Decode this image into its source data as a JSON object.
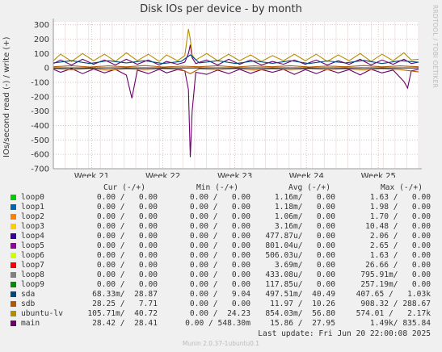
{
  "title": "Disk IOs per device - by month",
  "side_label": "RRDTOOL / TOBI OETIKER",
  "footer": "Munin 2.0.37-1ubuntu0.1",
  "last_update": "Last update: Fri Jun 20 22:00:08 2025",
  "colors": {
    "background": "#f0f0f0",
    "plot_bg": "#ffffff",
    "grid": "#e0c0c0",
    "zero_line": "#000000"
  },
  "legend_headers": {
    "cur": "Cur (-/+)",
    "min": "Min (-/+)",
    "avg": "Avg (-/+)",
    "max": "Max (-/+)"
  },
  "legend": [
    {
      "name": "loop0",
      "color": "#00cc00",
      "cur": "0.00 /   0.00",
      "min": "0.00 /   0.00",
      "avg": "1.16m/   0.00",
      "max": "1.63 /   0.00"
    },
    {
      "name": "loop1",
      "color": "#0066b3",
      "cur": "0.00 /   0.00",
      "min": "0.00 /   0.00",
      "avg": "1.18m/   0.00",
      "max": "1.98 /   0.00"
    },
    {
      "name": "loop2",
      "color": "#ff8000",
      "cur": "0.00 /   0.00",
      "min": "0.00 /   0.00",
      "avg": "1.06m/   0.00",
      "max": "1.70 /   0.00"
    },
    {
      "name": "loop3",
      "color": "#ffcc00",
      "cur": "0.00 /   0.00",
      "min": "0.00 /   0.00",
      "avg": "3.16m/   0.00",
      "max": "10.48 /   0.00"
    },
    {
      "name": "loop4",
      "color": "#330099",
      "cur": "0.00 /   0.00",
      "min": "0.00 /   0.00",
      "avg": "477.87u/   0.00",
      "max": "2.06 /   0.00"
    },
    {
      "name": "loop5",
      "color": "#990099",
      "cur": "0.00 /   0.00",
      "min": "0.00 /   0.00",
      "avg": "801.04u/   0.00",
      "max": "2.65 /   0.00"
    },
    {
      "name": "loop6",
      "color": "#ccff00",
      "cur": "0.00 /   0.00",
      "min": "0.00 /   0.00",
      "avg": "506.03u/   0.00",
      "max": "1.63 /   0.00"
    },
    {
      "name": "loop7",
      "color": "#ff0000",
      "cur": "0.00 /   0.00",
      "min": "0.00 /   0.00",
      "avg": "3.69m/   0.00",
      "max": "26.66 /   0.00"
    },
    {
      "name": "loop8",
      "color": "#808080",
      "cur": "0.00 /   0.00",
      "min": "0.00 /   0.00",
      "avg": "433.08u/   0.00",
      "max": "795.91m/   0.00"
    },
    {
      "name": "loop9",
      "color": "#008f00",
      "cur": "0.00 /   0.00",
      "min": "0.00 /   0.00",
      "avg": "117.85u/   0.00",
      "max": "257.19m/   0.00"
    },
    {
      "name": "sda",
      "color": "#00487d",
      "cur": "68.33m/  28.87",
      "min": "0.00 /   9.04",
      "avg": "497.51m/  40.49",
      "max": "407.65 /   1.03k"
    },
    {
      "name": "sdb",
      "color": "#b35a00",
      "cur": "28.25 /   7.71",
      "min": "0.00 /   0.00",
      "avg": "11.97 /  10.26",
      "max": "908.32 / 288.67"
    },
    {
      "name": "ubuntu-lv",
      "color": "#b38f00",
      "cur": "105.71m/  40.72",
      "min": "0.00 /  24.23",
      "avg": "854.03m/  56.80",
      "max": "574.01 /   2.17k"
    },
    {
      "name": "main",
      "color": "#6b006b",
      "cur": "28.42 /  28.41",
      "min": "0.00 / 548.30m",
      "avg": "15.86 /  27.95",
      "max": "1.49k/ 835.84"
    }
  ],
  "chart_data": {
    "type": "line",
    "title": "Disk IOs per device - by month",
    "ylabel": "IOs/second read (-) / write (+)",
    "ylim": [
      -700,
      320
    ],
    "yticks": [
      -700,
      -600,
      -500,
      -400,
      -300,
      -200,
      -100,
      0,
      100,
      200,
      300
    ],
    "xlim": [
      0,
      1
    ],
    "xticks": [
      {
        "label": "Week 21",
        "x": 0.105
      },
      {
        "label": "Week 22",
        "x": 0.3
      },
      {
        "label": "Week 23",
        "x": 0.497
      },
      {
        "label": "Week 24",
        "x": 0.693
      },
      {
        "label": "Week 25",
        "x": 0.89
      }
    ],
    "grid": true,
    "series": [
      {
        "name": "main (read, -)",
        "color": "#6b006b",
        "values": [
          [
            0.0,
            -10
          ],
          [
            0.02,
            -30
          ],
          [
            0.05,
            -5
          ],
          [
            0.08,
            -40
          ],
          [
            0.11,
            -8
          ],
          [
            0.14,
            -35
          ],
          [
            0.17,
            -10
          ],
          [
            0.2,
            -50
          ],
          [
            0.215,
            -210
          ],
          [
            0.23,
            -15
          ],
          [
            0.26,
            -40
          ],
          [
            0.29,
            -10
          ],
          [
            0.31,
            -35
          ],
          [
            0.34,
            -12
          ],
          [
            0.36,
            -20
          ],
          [
            0.37,
            -150
          ],
          [
            0.375,
            -620
          ],
          [
            0.38,
            -300
          ],
          [
            0.39,
            -30
          ],
          [
            0.42,
            -45
          ],
          [
            0.45,
            -15
          ],
          [
            0.48,
            -40
          ],
          [
            0.51,
            -10
          ],
          [
            0.54,
            -38
          ],
          [
            0.57,
            -12
          ],
          [
            0.6,
            -30
          ],
          [
            0.63,
            -10
          ],
          [
            0.66,
            -45
          ],
          [
            0.69,
            -12
          ],
          [
            0.72,
            -40
          ],
          [
            0.75,
            -10
          ],
          [
            0.78,
            -35
          ],
          [
            0.81,
            -12
          ],
          [
            0.84,
            -48
          ],
          [
            0.87,
            -10
          ],
          [
            0.9,
            -35
          ],
          [
            0.93,
            -15
          ],
          [
            0.96,
            -95
          ],
          [
            0.97,
            -140
          ],
          [
            0.98,
            -20
          ],
          [
            1.0,
            -10
          ]
        ]
      },
      {
        "name": "main (write, +)",
        "color": "#6b006b",
        "values": [
          [
            0.0,
            30
          ],
          [
            0.02,
            55
          ],
          [
            0.05,
            20
          ],
          [
            0.08,
            60
          ],
          [
            0.11,
            25
          ],
          [
            0.14,
            55
          ],
          [
            0.17,
            20
          ],
          [
            0.2,
            60
          ],
          [
            0.23,
            25
          ],
          [
            0.26,
            55
          ],
          [
            0.29,
            20
          ],
          [
            0.31,
            45
          ],
          [
            0.34,
            25
          ],
          [
            0.36,
            40
          ],
          [
            0.37,
            100
          ],
          [
            0.375,
            160
          ],
          [
            0.38,
            70
          ],
          [
            0.39,
            30
          ],
          [
            0.42,
            55
          ],
          [
            0.45,
            20
          ],
          [
            0.48,
            60
          ],
          [
            0.51,
            25
          ],
          [
            0.54,
            55
          ],
          [
            0.57,
            20
          ],
          [
            0.6,
            45
          ],
          [
            0.63,
            25
          ],
          [
            0.66,
            55
          ],
          [
            0.69,
            25
          ],
          [
            0.72,
            55
          ],
          [
            0.75,
            20
          ],
          [
            0.78,
            50
          ],
          [
            0.81,
            25
          ],
          [
            0.84,
            60
          ],
          [
            0.87,
            20
          ],
          [
            0.9,
            55
          ],
          [
            0.93,
            25
          ],
          [
            0.96,
            60
          ],
          [
            0.98,
            30
          ],
          [
            1.0,
            40
          ]
        ]
      },
      {
        "name": "ubuntu-lv (write, +)",
        "color": "#b38f00",
        "values": [
          [
            0.0,
            50
          ],
          [
            0.02,
            95
          ],
          [
            0.05,
            45
          ],
          [
            0.08,
            100
          ],
          [
            0.11,
            50
          ],
          [
            0.14,
            95
          ],
          [
            0.17,
            45
          ],
          [
            0.2,
            105
          ],
          [
            0.23,
            50
          ],
          [
            0.26,
            95
          ],
          [
            0.29,
            45
          ],
          [
            0.31,
            90
          ],
          [
            0.34,
            50
          ],
          [
            0.36,
            85
          ],
          [
            0.37,
            270
          ],
          [
            0.375,
            200
          ],
          [
            0.38,
            90
          ],
          [
            0.39,
            55
          ],
          [
            0.42,
            100
          ],
          [
            0.45,
            50
          ],
          [
            0.48,
            95
          ],
          [
            0.51,
            50
          ],
          [
            0.54,
            90
          ],
          [
            0.57,
            45
          ],
          [
            0.6,
            85
          ],
          [
            0.63,
            50
          ],
          [
            0.66,
            95
          ],
          [
            0.69,
            50
          ],
          [
            0.72,
            95
          ],
          [
            0.75,
            45
          ],
          [
            0.78,
            90
          ],
          [
            0.81,
            50
          ],
          [
            0.84,
            100
          ],
          [
            0.87,
            45
          ],
          [
            0.9,
            95
          ],
          [
            0.93,
            50
          ],
          [
            0.96,
            105
          ],
          [
            0.98,
            55
          ],
          [
            1.0,
            60
          ]
        ]
      },
      {
        "name": "sda (write, +)",
        "color": "#00487d",
        "values": [
          [
            0.0,
            35
          ],
          [
            0.05,
            50
          ],
          [
            0.1,
            30
          ],
          [
            0.15,
            50
          ],
          [
            0.2,
            35
          ],
          [
            0.25,
            50
          ],
          [
            0.3,
            30
          ],
          [
            0.35,
            45
          ],
          [
            0.375,
            90
          ],
          [
            0.4,
            35
          ],
          [
            0.45,
            50
          ],
          [
            0.5,
            30
          ],
          [
            0.55,
            48
          ],
          [
            0.6,
            32
          ],
          [
            0.65,
            50
          ],
          [
            0.7,
            30
          ],
          [
            0.75,
            48
          ],
          [
            0.8,
            35
          ],
          [
            0.85,
            52
          ],
          [
            0.9,
            30
          ],
          [
            0.95,
            50
          ],
          [
            1.0,
            40
          ]
        ]
      },
      {
        "name": "sdb (write, +)",
        "color": "#b35a00",
        "values": [
          [
            0.0,
            8
          ],
          [
            0.05,
            15
          ],
          [
            0.1,
            6
          ],
          [
            0.15,
            14
          ],
          [
            0.2,
            7
          ],
          [
            0.25,
            16
          ],
          [
            0.3,
            6
          ],
          [
            0.35,
            12
          ],
          [
            0.4,
            8
          ],
          [
            0.45,
            15
          ],
          [
            0.5,
            6
          ],
          [
            0.55,
            14
          ],
          [
            0.6,
            8
          ],
          [
            0.65,
            15
          ],
          [
            0.7,
            6
          ],
          [
            0.75,
            13
          ],
          [
            0.8,
            8
          ],
          [
            0.85,
            16
          ],
          [
            0.9,
            7
          ],
          [
            0.95,
            14
          ],
          [
            1.0,
            8
          ]
        ]
      },
      {
        "name": "sdb (read, -)",
        "color": "#b35a00",
        "values": [
          [
            0.0,
            -5
          ],
          [
            0.05,
            -12
          ],
          [
            0.1,
            -4
          ],
          [
            0.15,
            -15
          ],
          [
            0.2,
            -6
          ],
          [
            0.25,
            -12
          ],
          [
            0.3,
            -5
          ],
          [
            0.35,
            -10
          ],
          [
            0.375,
            -40
          ],
          [
            0.4,
            -6
          ],
          [
            0.45,
            -12
          ],
          [
            0.5,
            -5
          ],
          [
            0.55,
            -14
          ],
          [
            0.6,
            -6
          ],
          [
            0.65,
            -12
          ],
          [
            0.7,
            -5
          ],
          [
            0.75,
            -12
          ],
          [
            0.8,
            -6
          ],
          [
            0.85,
            -14
          ],
          [
            0.9,
            -5
          ],
          [
            0.95,
            -12
          ],
          [
            1.0,
            -28
          ]
        ]
      }
    ]
  }
}
